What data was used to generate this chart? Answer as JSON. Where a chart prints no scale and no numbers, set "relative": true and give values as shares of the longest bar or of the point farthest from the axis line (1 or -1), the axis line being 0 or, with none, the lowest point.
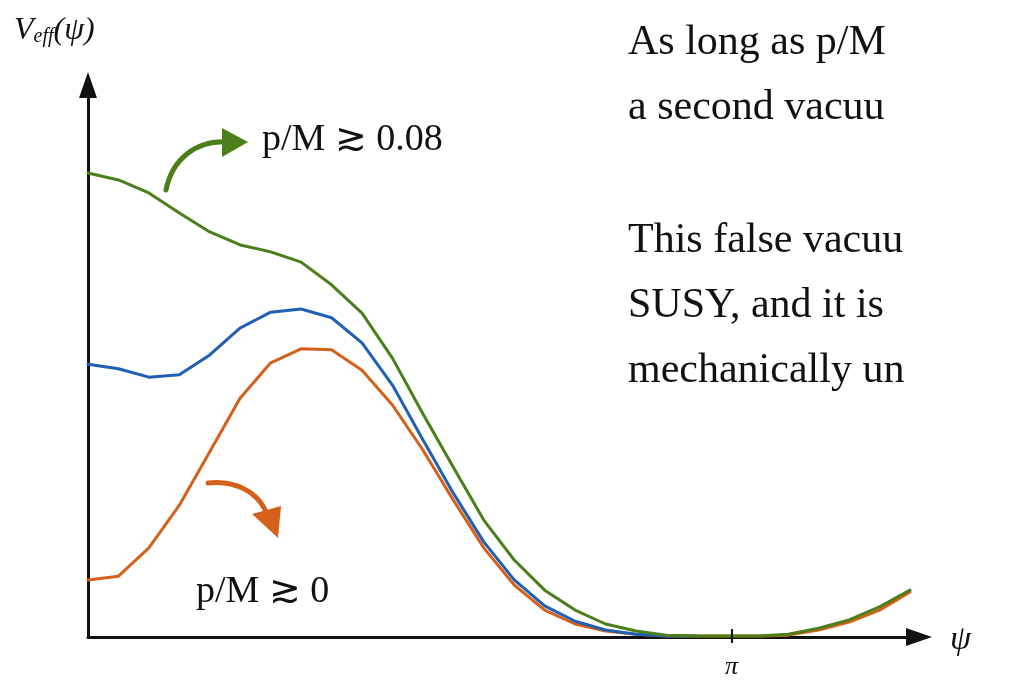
{
  "chart_data": {
    "type": "line",
    "relative": true,
    "xlabel": "ψ",
    "ylabel": "V$_{eff}$(ψ)",
    "categories": [
      null,
      null,
      null,
      null,
      null,
      null,
      null,
      null,
      null,
      null,
      null,
      null,
      null,
      null,
      null,
      null,
      null,
      null,
      null,
      null,
      null,
      null,
      null,
      null,
      null,
      null,
      null,
      null
    ],
    "grid": false,
    "marker": "none",
    "line_style": "solid",
    "series": [
      {
        "color": "#d4601a",
        "values": [
          0.123,
          0.131,
          0.192,
          0.284,
          0.399,
          0.515,
          0.591,
          0.621,
          0.619,
          0.575,
          0.5,
          0.403,
          0.295,
          0.192,
          0.112,
          0.058,
          0.028,
          0.013,
          0.006,
          0.002,
          0.002,
          0.002,
          0.002,
          0.004,
          0.015,
          0.032,
          0.058,
          0.097
        ]
      },
      {
        "color": "#1f5fb4",
        "values": [
          0.588,
          0.578,
          0.56,
          0.565,
          0.608,
          0.666,
          0.7,
          0.707,
          0.688,
          0.634,
          0.543,
          0.425,
          0.31,
          0.205,
          0.123,
          0.067,
          0.034,
          0.015,
          0.006,
          0.002,
          0.002,
          null,
          null,
          null,
          null,
          null,
          null,
          null
        ]
      },
      {
        "color": "#4a7f1a",
        "values": [
          1,
          0.985,
          0.957,
          0.914,
          0.873,
          0.845,
          0.83,
          0.808,
          0.759,
          0.698,
          0.601,
          0.481,
          0.366,
          0.252,
          0.166,
          0.101,
          0.058,
          0.028,
          0.013,
          0.004,
          0.002,
          0.002,
          0.002,
          0.006,
          0.019,
          0.037,
          0.065,
          0.101
        ]
      }
    ],
    "annotations": [
      "p/M ≳ 0.08",
      "p/M ≳ 0",
      "As long as p/M\na second vacuu",
      "This false vacuu\nSUSY, and it is\nmechanically un",
      "π"
    ]
  }
}
